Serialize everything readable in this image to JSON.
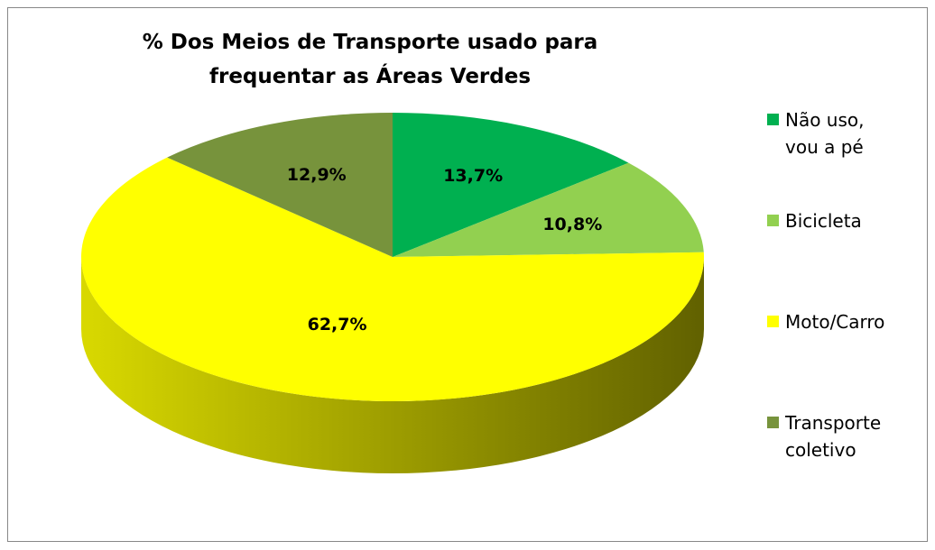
{
  "chart_data": {
    "type": "pie3d",
    "title": "% Dos Meios de Transporte usado para\nfrequentar  as  Áreas Verdes",
    "categories": [
      "Não uso, vou a pé",
      "Bicicleta",
      "Moto/Carro",
      "Transporte coletivo"
    ],
    "values": [
      13.7,
      10.8,
      62.7,
      12.9
    ],
    "value_labels": [
      "13,7%",
      "10,8%",
      "62,7%",
      "12,9%"
    ],
    "colors": [
      "#00b050",
      "#92d050",
      "#ffff00",
      "#77933c"
    ],
    "legend": "right"
  }
}
